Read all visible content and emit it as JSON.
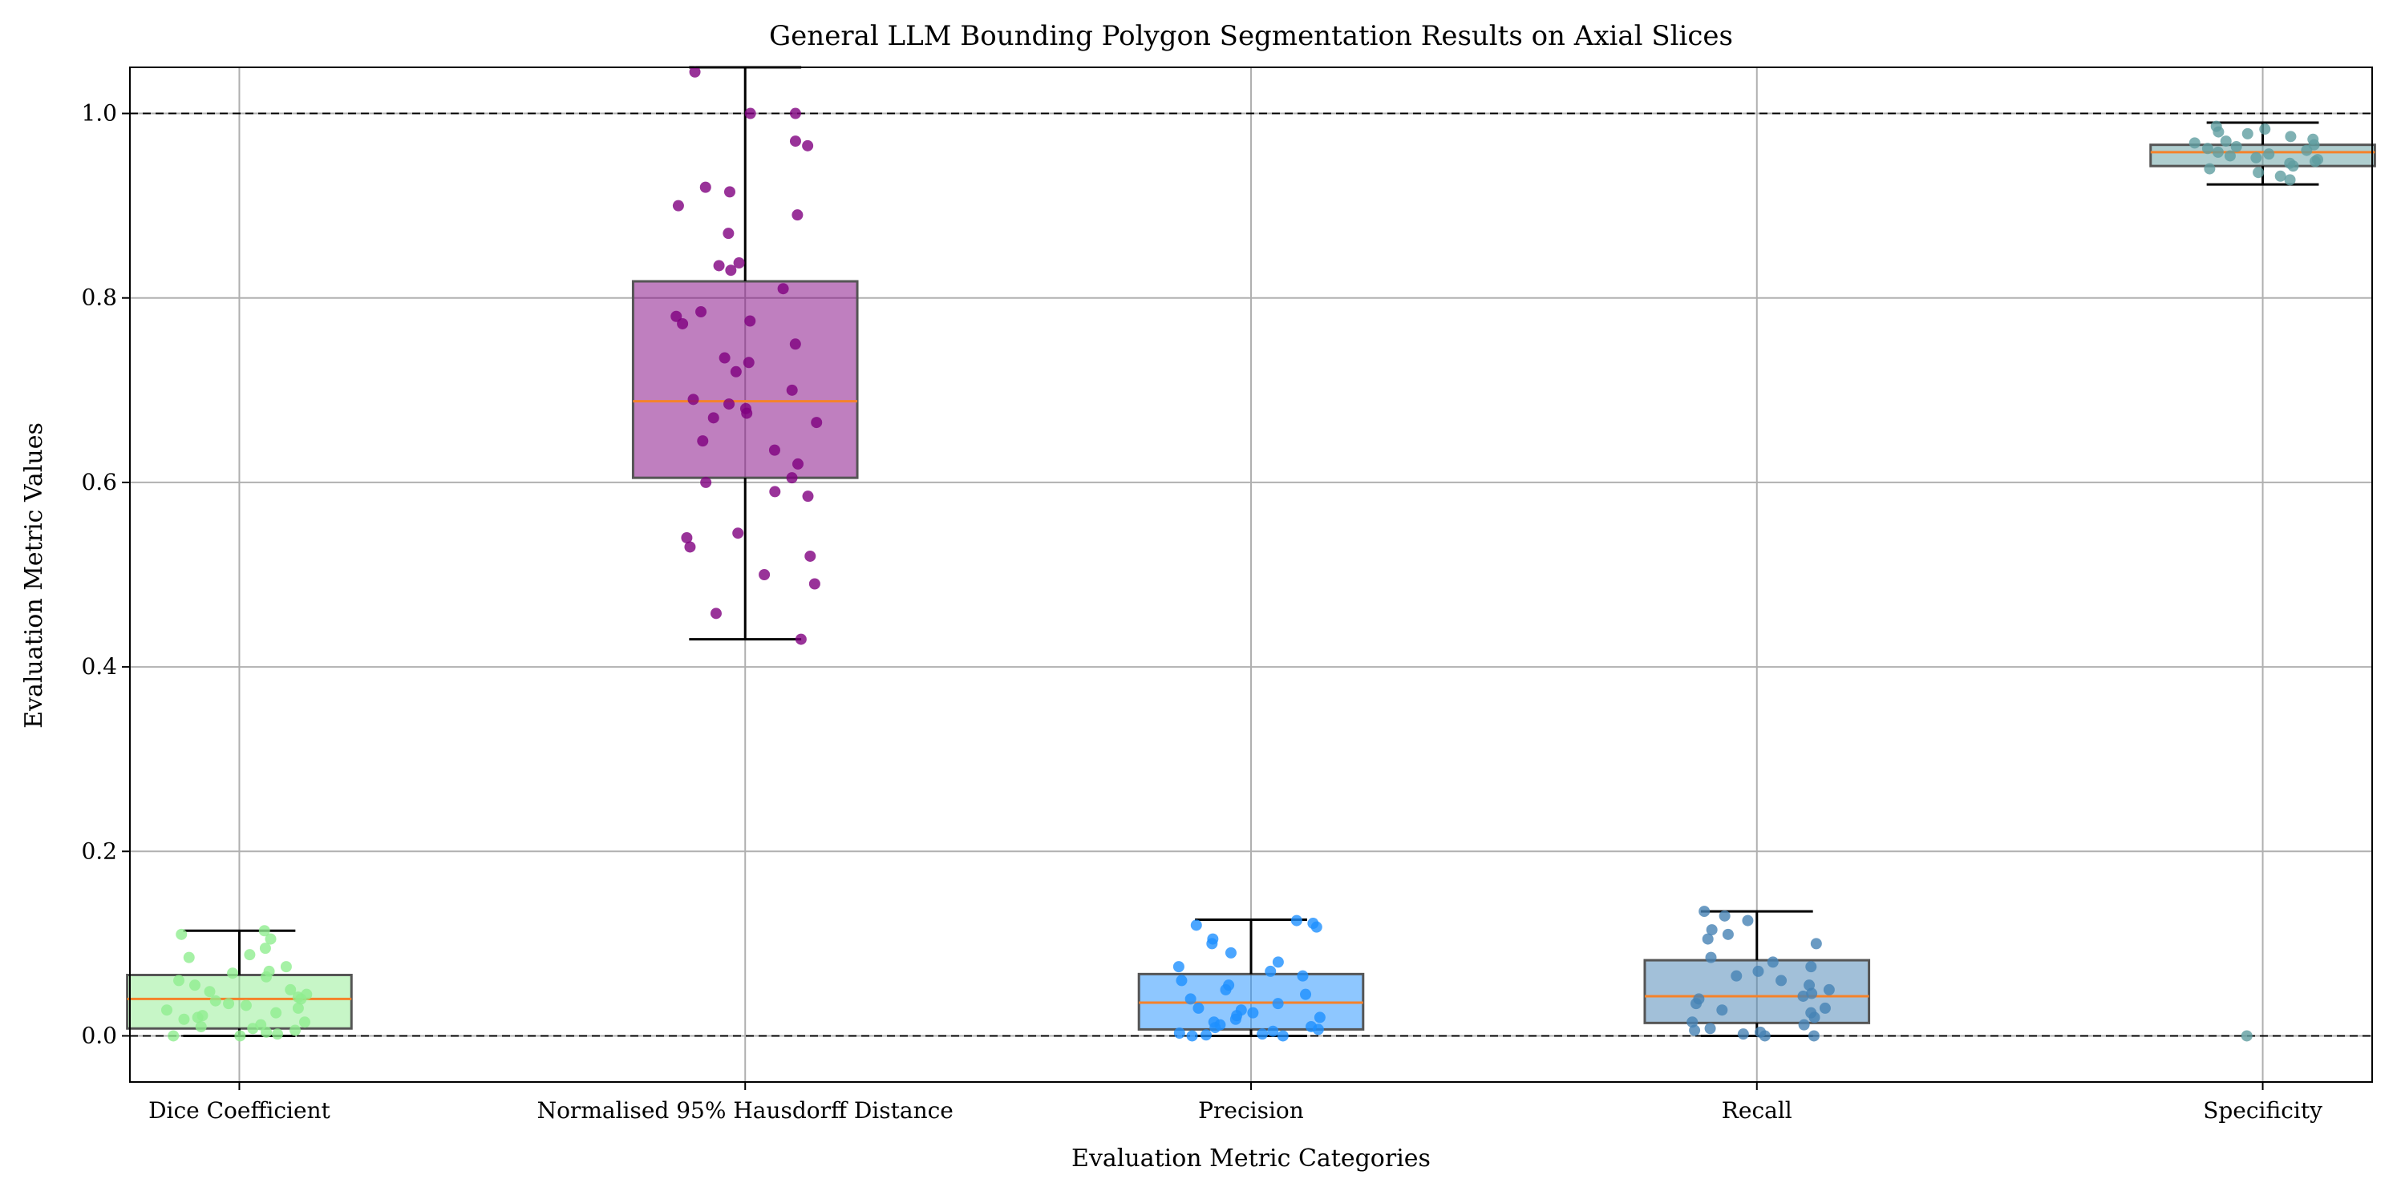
{
  "chart_data": {
    "type": "box",
    "title": "General LLM Bounding Polygon Segmentation Results on Axial Slices",
    "xlabel": "Evaluation Metric Categories",
    "ylabel": "Evaluation Metric Values",
    "ylim": [
      -0.05,
      1.05
    ],
    "yticks": [
      "0.0",
      "0.2",
      "0.4",
      "0.6",
      "0.8",
      "1.0"
    ],
    "grid": true,
    "reference_lines": [
      0.0,
      1.0
    ],
    "categories": [
      "Dice Coefficient",
      "Normalised 95% Hausdorff Distance",
      "Precision",
      "Recall",
      "Specificity"
    ],
    "series": [
      {
        "name": "Dice Coefficient",
        "color": "#90ee90",
        "q1": 0.008,
        "median": 0.04,
        "q3": 0.066,
        "whisker_low": 0.0,
        "whisker_high": 0.114,
        "points": [
          0.0,
          0.0,
          0.002,
          0.004,
          0.006,
          0.008,
          0.01,
          0.012,
          0.015,
          0.018,
          0.02,
          0.022,
          0.025,
          0.028,
          0.03,
          0.033,
          0.035,
          0.038,
          0.04,
          0.042,
          0.045,
          0.048,
          0.05,
          0.055,
          0.06,
          0.064,
          0.068,
          0.07,
          0.075,
          0.085,
          0.088,
          0.095,
          0.105,
          0.11,
          0.114
        ]
      },
      {
        "name": "Normalised 95% Hausdorff Distance",
        "color": "#800080",
        "q1": 0.605,
        "median": 0.688,
        "q3": 0.818,
        "whisker_low": 0.43,
        "whisker_high": 1.05,
        "points": [
          0.43,
          0.458,
          0.49,
          0.5,
          0.52,
          0.53,
          0.54,
          0.545,
          0.585,
          0.59,
          0.6,
          0.605,
          0.62,
          0.635,
          0.645,
          0.665,
          0.67,
          0.675,
          0.68,
          0.685,
          0.69,
          0.7,
          0.72,
          0.73,
          0.735,
          0.75,
          0.772,
          0.775,
          0.78,
          0.785,
          0.81,
          0.83,
          0.835,
          0.838,
          0.87,
          0.89,
          0.9,
          0.915,
          0.92,
          0.965,
          0.97,
          1.0,
          1.0,
          1.045
        ]
      },
      {
        "name": "Precision",
        "color": "#1e90ff",
        "q1": 0.007,
        "median": 0.036,
        "q3": 0.067,
        "whisker_low": 0.0,
        "whisker_high": 0.126,
        "points": [
          0.0,
          0.0,
          0.001,
          0.002,
          0.003,
          0.005,
          0.007,
          0.009,
          0.01,
          0.012,
          0.015,
          0.018,
          0.02,
          0.022,
          0.025,
          0.028,
          0.03,
          0.035,
          0.04,
          0.045,
          0.05,
          0.055,
          0.06,
          0.065,
          0.07,
          0.075,
          0.08,
          0.09,
          0.1,
          0.105,
          0.118,
          0.12,
          0.122,
          0.125
        ]
      },
      {
        "name": "Recall",
        "color": "#4682b4",
        "q1": 0.014,
        "median": 0.043,
        "q3": 0.082,
        "whisker_low": 0.0,
        "whisker_high": 0.135,
        "points": [
          0.0,
          0.0,
          0.002,
          0.004,
          0.006,
          0.008,
          0.012,
          0.015,
          0.02,
          0.025,
          0.028,
          0.03,
          0.035,
          0.04,
          0.043,
          0.046,
          0.05,
          0.055,
          0.06,
          0.065,
          0.07,
          0.075,
          0.08,
          0.085,
          0.1,
          0.105,
          0.11,
          0.115,
          0.125,
          0.13,
          0.135
        ]
      },
      {
        "name": "Specificity",
        "color": "#5f9ea0",
        "q1": 0.943,
        "median": 0.958,
        "q3": 0.966,
        "whisker_low": 0.923,
        "whisker_high": 0.99,
        "points": [
          0.0,
          0.928,
          0.932,
          0.936,
          0.94,
          0.943,
          0.946,
          0.948,
          0.95,
          0.952,
          0.954,
          0.956,
          0.958,
          0.96,
          0.962,
          0.964,
          0.966,
          0.968,
          0.97,
          0.972,
          0.975,
          0.978,
          0.98,
          0.983,
          0.986
        ]
      }
    ]
  }
}
